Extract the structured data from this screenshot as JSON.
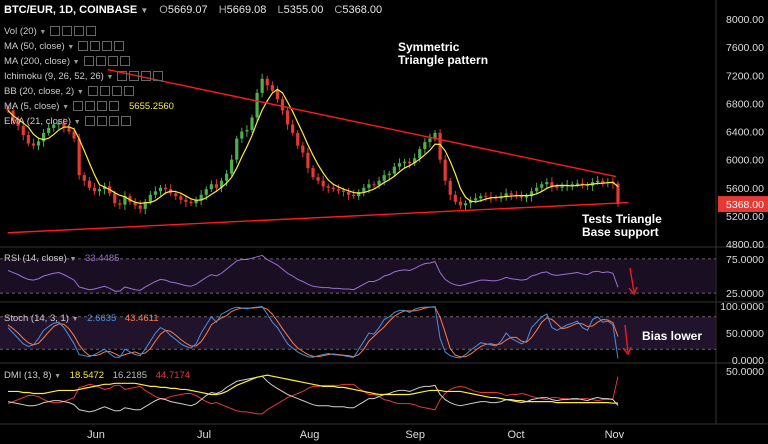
{
  "header": {
    "symbol": "BTC/EUR, 1D, COINBASE",
    "open_label": "O",
    "open": "5669.07",
    "high_label": "H",
    "high": "5669.08",
    "low_label": "L",
    "low": "5355.00",
    "close_label": "C",
    "close": "5368.00"
  },
  "indicators": [
    {
      "label": "Vol (20)"
    },
    {
      "label": "MA (50, close)"
    },
    {
      "label": "MA (200, close)"
    },
    {
      "label": "Ichimoku (9, 26, 52, 26)"
    },
    {
      "label": "BB (20, close, 2)"
    },
    {
      "label": "MA (5, close)",
      "value": "5655.2560"
    },
    {
      "label": "EMA (21, close)"
    }
  ],
  "annotations": {
    "pattern_line1": "Symmetric",
    "pattern_line2": "Triangle pattern",
    "support_line1": "Tests Triangle",
    "support_line2": "Base support",
    "bias": "Bias lower"
  },
  "rsi": {
    "label": "RSI (14, close)",
    "value": "33.4485"
  },
  "stoch": {
    "label": "Stoch (14, 3, 1)",
    "k": "2.6635",
    "d": "43.4611"
  },
  "dmi": {
    "label": "DMI (13, 8)",
    "adx": "18.5472",
    "plus_di": "16.2185",
    "minus_di": "44.7174"
  },
  "colors": {
    "up": "#4caf50",
    "down": "#e53935",
    "ma": "#ffeb3b",
    "trend": "#ff1a1a",
    "rsi": "#9c6fd6",
    "stoch_k": "#4a8fe0",
    "stoch_d": "#ff7a45",
    "band": "#2a1838",
    "price_tag": "#e53935"
  },
  "chart_data": {
    "type": "candlestick",
    "x_ticks": [
      "Jun",
      "Jul",
      "Aug",
      "Sep",
      "Oct",
      "Nov"
    ],
    "price_axis": [
      8000,
      7600,
      7200,
      6800,
      6400,
      6000,
      5600,
      5200,
      4800
    ],
    "price_axis_labels": [
      "8000.00",
      "7600.00",
      "7200.00",
      "6800.00",
      "6400.00",
      "6000.00",
      "5600.00",
      "5200.00",
      "4800.00"
    ],
    "last_price": 5368.0,
    "last_price_label": "5368.00",
    "ylim": [
      4800,
      8100
    ],
    "closes": [
      6700,
      6550,
      6480,
      6350,
      6230,
      6200,
      6260,
      6380,
      6450,
      6500,
      6520,
      6460,
      6400,
      6300,
      5780,
      5700,
      5600,
      5550,
      5580,
      5620,
      5520,
      5380,
      5360,
      5480,
      5400,
      5350,
      5300,
      5400,
      5500,
      5550,
      5600,
      5580,
      5520,
      5480,
      5430,
      5400,
      5380,
      5420,
      5500,
      5580,
      5650,
      5600,
      5700,
      5800,
      6000,
      6300,
      6400,
      6420,
      6600,
      6950,
      7150,
      7060,
      6980,
      6860,
      6700,
      6500,
      6380,
      6200,
      6100,
      5880,
      5750,
      5700,
      5620,
      5600,
      5580,
      5560,
      5540,
      5500,
      5480,
      5540,
      5600,
      5650,
      5640,
      5700,
      5780,
      5800,
      5900,
      5950,
      5970,
      5950,
      6020,
      6150,
      6250,
      6300,
      6380,
      6000,
      5700,
      5500,
      5400,
      5350,
      5380,
      5420,
      5450,
      5480,
      5470,
      5460,
      5450,
      5480,
      5520,
      5500,
      5480,
      5460,
      5480,
      5550,
      5600,
      5650,
      5680,
      5620,
      5600,
      5620,
      5640,
      5650,
      5660,
      5640,
      5630,
      5680,
      5700,
      5670,
      5680,
      5660,
      5368
    ],
    "triangle_upper": [
      [
        [
          7.0,
          7280
        ],
        [
          40.0,
          5760
        ]
      ]
    ],
    "triangle_lower": [
      [
        [
          0.5,
          4960
        ],
        [
          40.8,
          5390
        ]
      ]
    ],
    "month_positions": [
      4.0,
      8.5,
      12.9,
      17.3,
      21.5,
      25.6
    ],
    "rsi_ref_levels": [
      75,
      25
    ],
    "rsi_axis": [
      "75.0000",
      "25.0000"
    ],
    "rsi_series": [
      58,
      55,
      52,
      48,
      45,
      44,
      46,
      50,
      52,
      54,
      55,
      52,
      48,
      44,
      34,
      32,
      30,
      31,
      33,
      35,
      32,
      28,
      28,
      34,
      32,
      30,
      29,
      34,
      38,
      42,
      45,
      44,
      41,
      40,
      38,
      36,
      35,
      38,
      43,
      48,
      52,
      50,
      54,
      60,
      66,
      72,
      74,
      74,
      76,
      78,
      80,
      74,
      70,
      66,
      60,
      54,
      50,
      45,
      42,
      38,
      35,
      34,
      33,
      33,
      32,
      32,
      31,
      31,
      30,
      34,
      38,
      42,
      42,
      45,
      50,
      52,
      56,
      58,
      59,
      58,
      61,
      65,
      68,
      69,
      71,
      55,
      45,
      40,
      37,
      36,
      38,
      40,
      42,
      44,
      44,
      43,
      43,
      45,
      48,
      46,
      45,
      44,
      45,
      50,
      52,
      55,
      56,
      52,
      51,
      52,
      53,
      54,
      55,
      53,
      52,
      56,
      57,
      55,
      56,
      54,
      33.4485
    ],
    "stoch_ref_levels": [
      80,
      20
    ],
    "stoch_axis": [
      "100.0000",
      "50.0000",
      "0.0000"
    ],
    "stoch_k": [
      60,
      50,
      40,
      30,
      25,
      28,
      40,
      55,
      62,
      68,
      70,
      60,
      45,
      30,
      10,
      8,
      6,
      10,
      15,
      20,
      12,
      5,
      5,
      20,
      15,
      10,
      8,
      20,
      35,
      50,
      60,
      55,
      45,
      38,
      30,
      25,
      22,
      30,
      50,
      65,
      80,
      70,
      85,
      90,
      95,
      98,
      96,
      95,
      97,
      98,
      99,
      85,
      70,
      60,
      45,
      30,
      22,
      15,
      10,
      6,
      5,
      8,
      10,
      12,
      10,
      9,
      8,
      6,
      5,
      20,
      35,
      50,
      48,
      60,
      75,
      80,
      88,
      92,
      92,
      88,
      94,
      97,
      98,
      98,
      99,
      40,
      15,
      8,
      5,
      4,
      10,
      18,
      25,
      32,
      30,
      28,
      26,
      35,
      50,
      40,
      35,
      30,
      35,
      60,
      70,
      80,
      85,
      60,
      55,
      60,
      65,
      68,
      72,
      60,
      55,
      75,
      80,
      70,
      72,
      65,
      2.6635
    ],
    "stoch_d": [
      65,
      58,
      50,
      40,
      32,
      28,
      31,
      41,
      52,
      62,
      67,
      66,
      58,
      45,
      28,
      16,
      8,
      8,
      10,
      15,
      16,
      12,
      7,
      10,
      13,
      15,
      11,
      13,
      21,
      35,
      48,
      55,
      53,
      46,
      38,
      31,
      26,
      26,
      34,
      48,
      65,
      72,
      78,
      82,
      90,
      94,
      96,
      96,
      96,
      97,
      98,
      94,
      85,
      72,
      58,
      45,
      32,
      22,
      16,
      10,
      7,
      6,
      8,
      10,
      11,
      10,
      9,
      8,
      6,
      10,
      20,
      35,
      44,
      53,
      61,
      72,
      81,
      87,
      91,
      91,
      91,
      93,
      96,
      98,
      98,
      79,
      51,
      21,
      9,
      6,
      6,
      11,
      18,
      25,
      29,
      30,
      28,
      30,
      37,
      42,
      42,
      35,
      33,
      42,
      55,
      70,
      78,
      75,
      67,
      58,
      60,
      64,
      68,
      67,
      62,
      63,
      70,
      75,
      74,
      69,
      43.4611
    ],
    "dmi_axis": [
      "50.0000"
    ],
    "dmi_adx": [
      30,
      30,
      30,
      29,
      29,
      28,
      28,
      28,
      29,
      30,
      31,
      31,
      31,
      31,
      32,
      33,
      34,
      35,
      36,
      37,
      37,
      38,
      38,
      38,
      38,
      38,
      37,
      36,
      35,
      35,
      34,
      34,
      33,
      33,
      32,
      32,
      31,
      30,
      29,
      28,
      27,
      27,
      28,
      30,
      33,
      36,
      38,
      40,
      42,
      44,
      45,
      46,
      45,
      44,
      43,
      42,
      41,
      40,
      39,
      38,
      37,
      36,
      35,
      35,
      35,
      34,
      34,
      33,
      32,
      31,
      30,
      29,
      28,
      27,
      27,
      27,
      27,
      27,
      27,
      27,
      28,
      29,
      30,
      31,
      31,
      31,
      30,
      30,
      30,
      30,
      29,
      28,
      27,
      26,
      25,
      24,
      24,
      23,
      22,
      22,
      21,
      21,
      20,
      20,
      20,
      20,
      20,
      20,
      19,
      19,
      19,
      19,
      19,
      19,
      19,
      19,
      19,
      19,
      19,
      18.5,
      18.5472
    ],
    "dmi_plus": [
      20,
      19,
      18,
      17,
      16,
      16,
      17,
      19,
      20,
      21,
      21,
      20,
      19,
      17,
      12,
      11,
      10,
      11,
      13,
      15,
      13,
      11,
      11,
      14,
      13,
      12,
      12,
      15,
      18,
      21,
      23,
      22,
      20,
      19,
      18,
      17,
      16,
      18,
      22,
      26,
      29,
      28,
      30,
      34,
      37,
      40,
      41,
      42,
      43,
      44,
      45,
      40,
      36,
      33,
      30,
      27,
      25,
      23,
      21,
      19,
      17,
      16,
      16,
      16,
      15,
      15,
      15,
      14,
      14,
      17,
      20,
      23,
      23,
      25,
      27,
      28,
      30,
      31,
      31,
      30,
      32,
      34,
      35,
      35,
      36,
      27,
      22,
      19,
      17,
      16,
      17,
      18,
      19,
      20,
      20,
      19,
      19,
      20,
      22,
      21,
      20,
      19,
      20,
      22,
      23,
      24,
      24,
      22,
      21,
      22,
      22,
      23,
      23,
      22,
      21,
      23,
      24,
      23,
      23,
      22,
      16.2185
    ],
    "dmi_minus": [
      18,
      20,
      22,
      24,
      26,
      26,
      25,
      22,
      20,
      19,
      19,
      20,
      22,
      24,
      34,
      35,
      37,
      36,
      34,
      32,
      33,
      36,
      36,
      32,
      33,
      34,
      35,
      31,
      28,
      25,
      23,
      23,
      25,
      26,
      27,
      28,
      28,
      26,
      23,
      20,
      18,
      19,
      17,
      15,
      13,
      11,
      10,
      10,
      9,
      8,
      8,
      12,
      15,
      18,
      21,
      24,
      26,
      28,
      30,
      33,
      35,
      35,
      36,
      36,
      36,
      36,
      37,
      37,
      37,
      33,
      30,
      27,
      27,
      25,
      22,
      21,
      19,
      18,
      18,
      18,
      17,
      15,
      14,
      13,
      12,
      22,
      28,
      32,
      34,
      35,
      34,
      32,
      30,
      29,
      29,
      29,
      29,
      28,
      26,
      27,
      27,
      28,
      27,
      25,
      24,
      23,
      22,
      24,
      24,
      23,
      23,
      22,
      22,
      23,
      23,
      22,
      21,
      22,
      22,
      23,
      44.7174
    ]
  }
}
